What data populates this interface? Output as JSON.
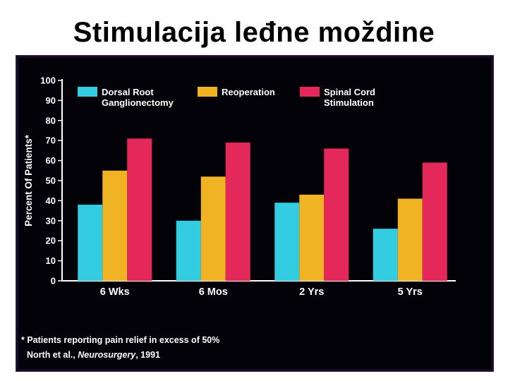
{
  "page": {
    "title": "Stimulacija leđne moždine"
  },
  "footnote": "* Patients reporting pain relief in excess of 50%",
  "citation": {
    "authors": "North et al., ",
    "journal": "Neurosurgery",
    "year": ", 1991"
  },
  "chart_data": {
    "type": "bar",
    "title": "",
    "xlabel": "",
    "ylabel": "Percent Of Patients*",
    "ylim": [
      0,
      100
    ],
    "yticks": [
      0,
      10,
      20,
      30,
      40,
      50,
      60,
      70,
      80,
      90,
      100
    ],
    "grid": false,
    "legend": "top",
    "categories": [
      "6 Wks",
      "6 Mos",
      "2 Yrs",
      "5 Yrs"
    ],
    "series": [
      {
        "name": "Dorsal Root\nGanglionectomy",
        "color": "#33cce0",
        "values": [
          38,
          30,
          39,
          26
        ]
      },
      {
        "name": "Reoperation",
        "color": "#f0b323",
        "values": [
          55,
          52,
          43,
          41
        ]
      },
      {
        "name": "Spinal Cord\nStimulation",
        "color": "#e5285a",
        "values": [
          71,
          69,
          66,
          59
        ]
      }
    ]
  }
}
